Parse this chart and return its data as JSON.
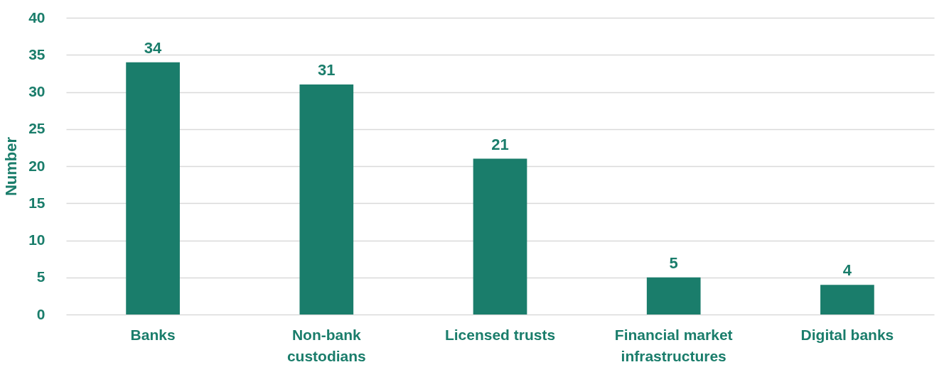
{
  "chart_data": {
    "type": "bar",
    "ylabel": "Number",
    "categories": [
      "Banks",
      "Non-bank custodians",
      "Licensed trusts",
      "Financial market infrastructures",
      "Digital banks"
    ],
    "values": [
      34,
      31,
      21,
      5,
      4
    ],
    "color": "#1a7d6b",
    "ylim": [
      0,
      40
    ],
    "yticks": [
      0,
      5,
      10,
      15,
      20,
      25,
      30,
      35,
      40
    ],
    "grid": "y",
    "data_labels": true
  }
}
